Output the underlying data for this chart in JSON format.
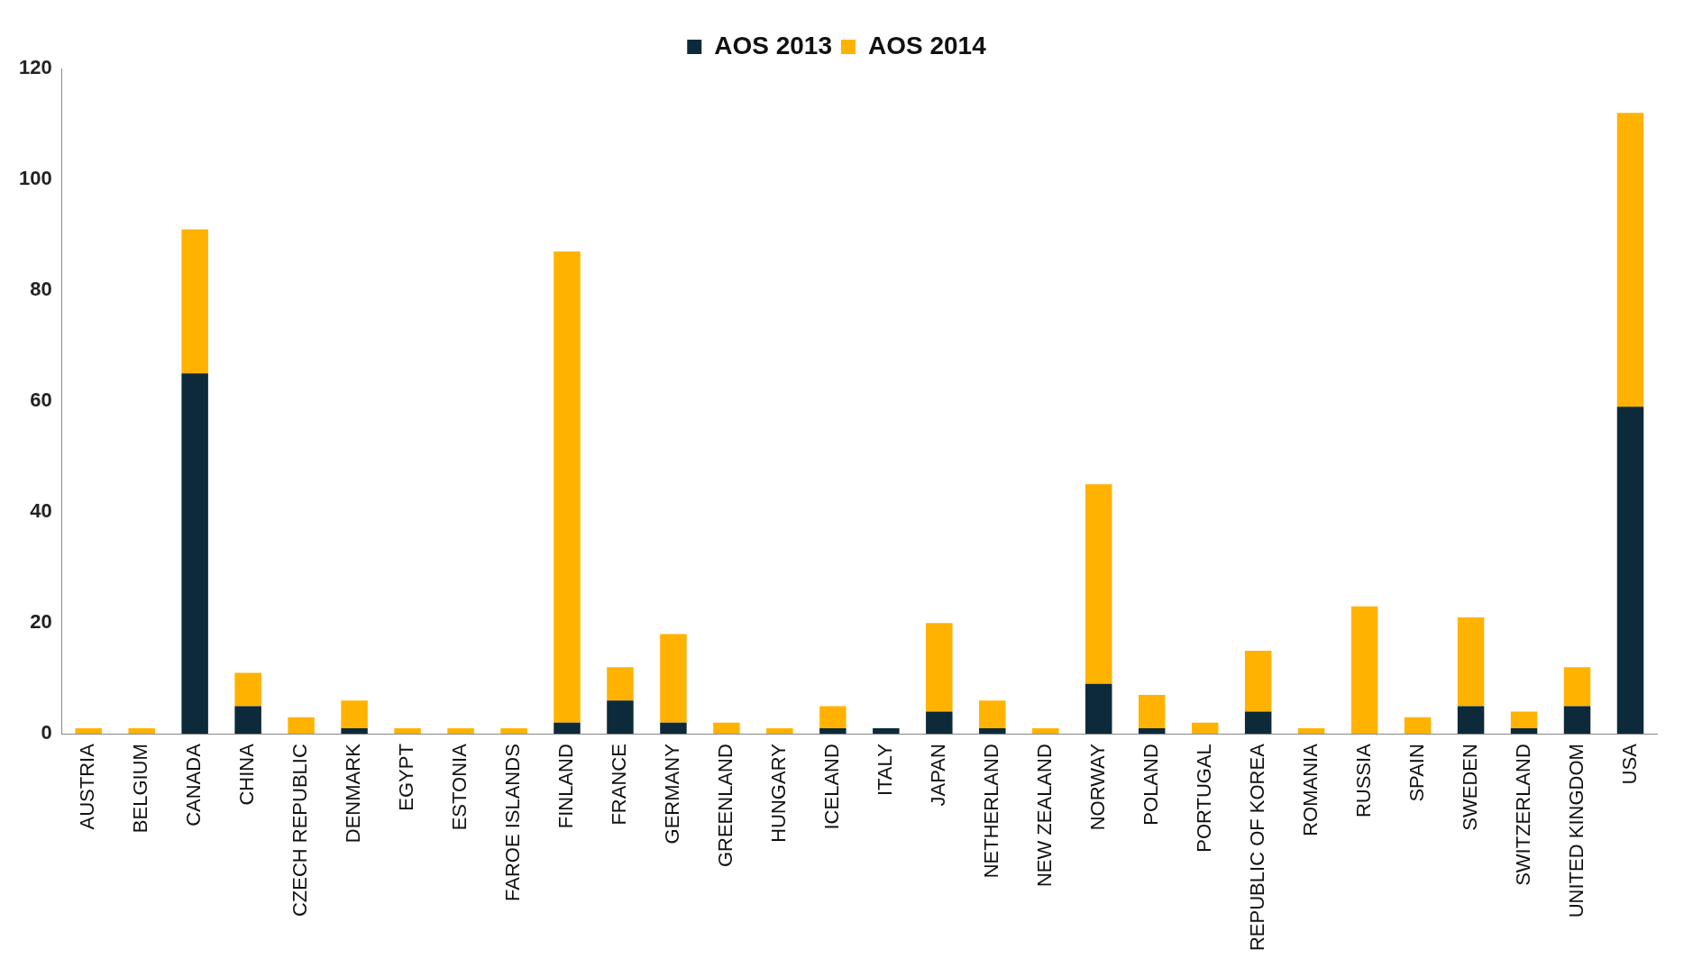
{
  "chart_data": {
    "type": "bar",
    "stacked": true,
    "categories": [
      "AUSTRIA",
      "BELGIUM",
      "CANADA",
      "CHINA",
      "CZECH REPUBLIC",
      "DENMARK",
      "EGYPT",
      "ESTONIA",
      "FAROE ISLANDS",
      "FINLAND",
      "FRANCE",
      "GERMANY",
      "GREENLAND",
      "HUNGARY",
      "ICELAND",
      "ITALY",
      "JAPAN",
      "NETHERLAND",
      "NEW ZEALAND",
      "NORWAY",
      "POLAND",
      "PORTUGAL",
      "REPUBLIC OF KOREA",
      "ROMANIA",
      "RUSSIA",
      "SPAIN",
      "SWEDEN",
      "SWITZERLAND",
      "UNITED KINGDOM",
      "USA"
    ],
    "series": [
      {
        "name": "AOS 2013",
        "color": "#0d2a3a",
        "values": [
          0,
          0,
          65,
          5,
          0,
          1,
          0,
          0,
          0,
          2,
          6,
          2,
          0,
          0,
          1,
          1,
          4,
          1,
          0,
          9,
          1,
          0,
          4,
          0,
          0,
          0,
          5,
          1,
          5,
          59
        ]
      },
      {
        "name": "AOS 2014",
        "color": "#ffb300",
        "values": [
          1,
          1,
          26,
          6,
          3,
          5,
          1,
          1,
          1,
          85,
          6,
          16,
          2,
          1,
          4,
          0,
          16,
          5,
          1,
          36,
          6,
          2,
          11,
          1,
          23,
          3,
          16,
          3,
          7,
          53
        ]
      }
    ],
    "ylim": [
      0,
      120
    ],
    "yticks": [
      0,
      20,
      40,
      60,
      80,
      100,
      120
    ],
    "grid": false,
    "legend": "top"
  }
}
